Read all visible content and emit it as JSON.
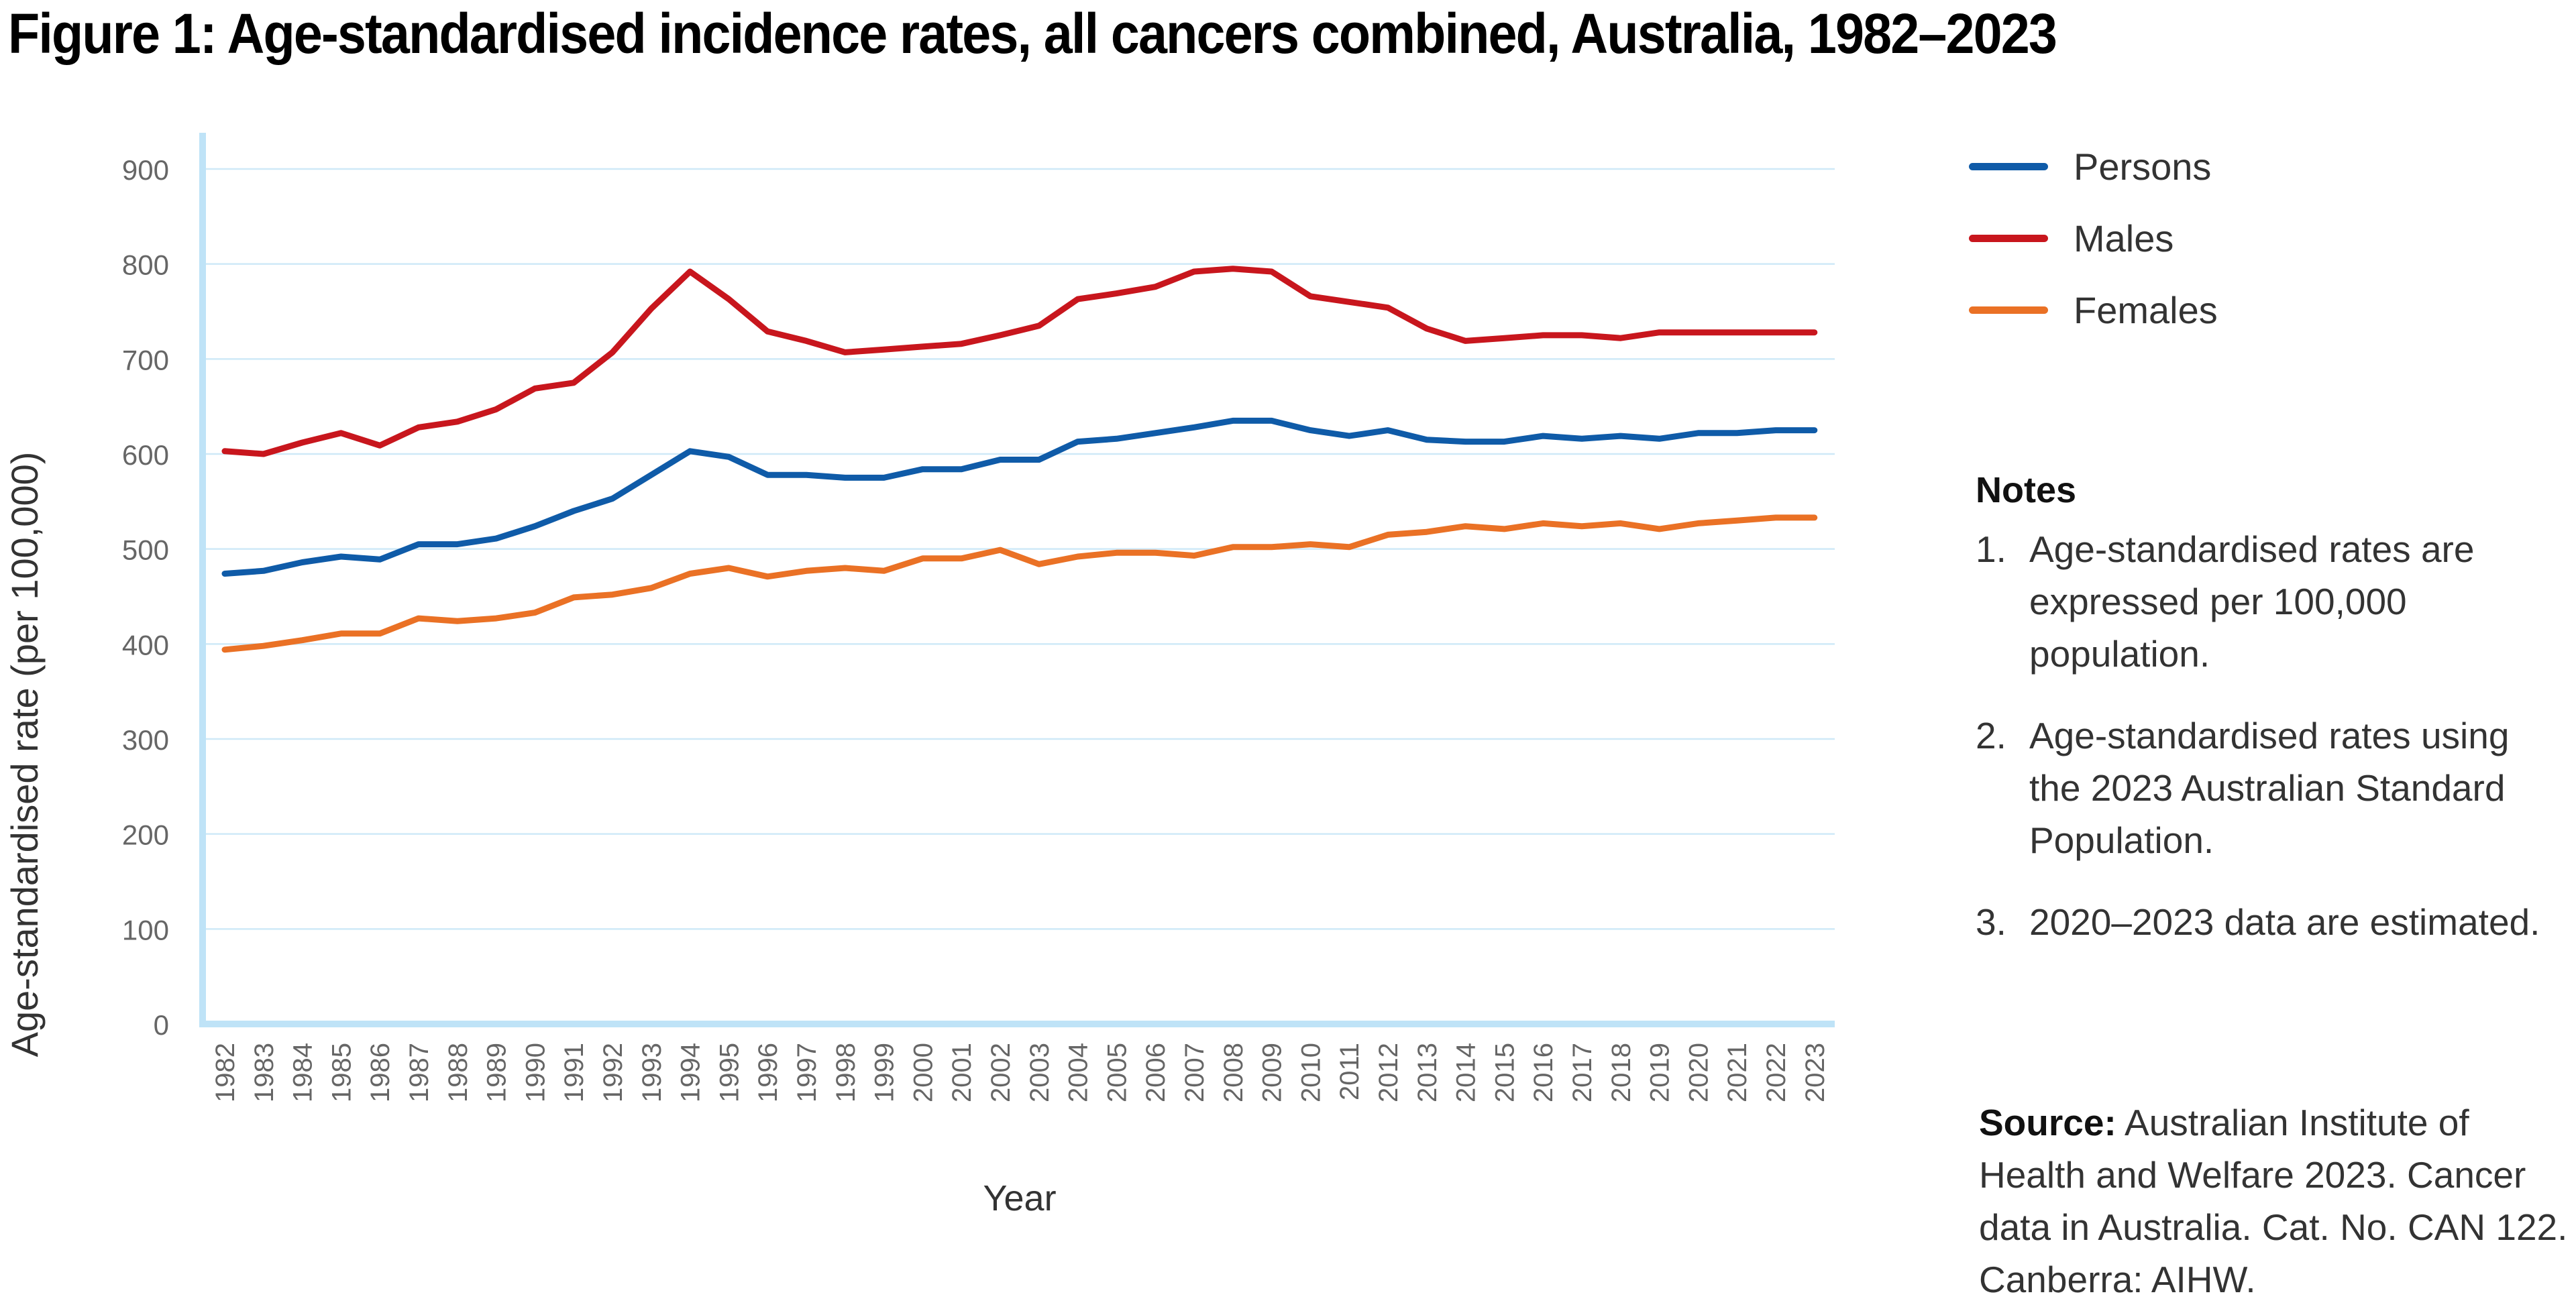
{
  "title": "Figure 1: Age-standardised incidence rates, all cancers combined, Australia, 1982–2023",
  "legend": [
    {
      "name": "Persons",
      "color": "#0f5ba8"
    },
    {
      "name": "Males",
      "color": "#c8161d"
    },
    {
      "name": "Females",
      "color": "#ea7125"
    }
  ],
  "notes": {
    "heading": "Notes",
    "items": [
      {
        "num": "1.",
        "text": "Age-standardised rates are expressed per 100,000 population."
      },
      {
        "num": "2.",
        "text": "Age-standardised rates using the 2023 Australian Standard Population."
      },
      {
        "num": "3.",
        "text": "2020–2023 data are estimated."
      }
    ]
  },
  "source": {
    "label": "Source:",
    "text": "Australian Institute of Health and Welfare 2023. Cancer data in Australia. Cat. No. CAN 122. Canberra: AIHW."
  },
  "colors": {
    "axis": "#bfe3f7",
    "grid": "#cfe9f8",
    "tick_text": "#666666"
  },
  "chart_data": {
    "type": "line",
    "title": "Figure 1: Age-standardised incidence rates, all cancers combined, Australia, 1982–2023",
    "xlabel": "Year",
    "ylabel": "Age-standardised rate (per 100,000)",
    "ylim": [
      0,
      900
    ],
    "yticks": [
      0,
      100,
      200,
      300,
      400,
      500,
      600,
      700,
      800,
      900
    ],
    "grid": true,
    "legend_position": "right",
    "categories": [
      "1982",
      "1983",
      "1984",
      "1985",
      "1986",
      "1987",
      "1988",
      "1989",
      "1990",
      "1991",
      "1992",
      "1993",
      "1994",
      "1995",
      "1996",
      "1997",
      "1998",
      "1999",
      "2000",
      "2001",
      "2002",
      "2003",
      "2004",
      "2005",
      "2006",
      "2007",
      "2008",
      "2009",
      "2010",
      "2011",
      "2012",
      "2013",
      "2014",
      "2015",
      "2016",
      "2017",
      "2018",
      "2019",
      "2020",
      "2021",
      "2022",
      "2023"
    ],
    "series": [
      {
        "name": "Persons",
        "color": "#0f5ba8",
        "values": [
          474,
          477,
          486,
          492,
          489,
          505,
          505,
          511,
          524,
          540,
          553,
          578,
          603,
          597,
          578,
          578,
          575,
          575,
          584,
          584,
          594,
          594,
          613,
          616,
          622,
          628,
          635,
          635,
          625,
          619,
          625,
          615,
          613,
          613,
          619,
          616,
          619,
          616,
          622,
          622,
          625,
          625
        ]
      },
      {
        "name": "Males",
        "color": "#c8161d",
        "values": [
          603,
          600,
          612,
          622,
          609,
          628,
          634,
          647,
          669,
          675,
          707,
          753,
          792,
          763,
          729,
          719,
          707,
          710,
          713,
          716,
          725,
          735,
          763,
          769,
          776,
          792,
          795,
          792,
          766,
          760,
          754,
          732,
          719,
          722,
          725,
          725,
          722,
          728,
          728,
          728,
          728,
          728
        ]
      },
      {
        "name": "Females",
        "color": "#ea7125",
        "values": [
          394,
          398,
          404,
          411,
          411,
          427,
          424,
          427,
          433,
          449,
          452,
          459,
          474,
          480,
          471,
          477,
          480,
          477,
          490,
          490,
          499,
          484,
          492,
          496,
          496,
          493,
          502,
          502,
          505,
          502,
          515,
          518,
          524,
          521,
          527,
          524,
          527,
          521,
          527,
          530,
          533,
          533
        ]
      }
    ]
  }
}
